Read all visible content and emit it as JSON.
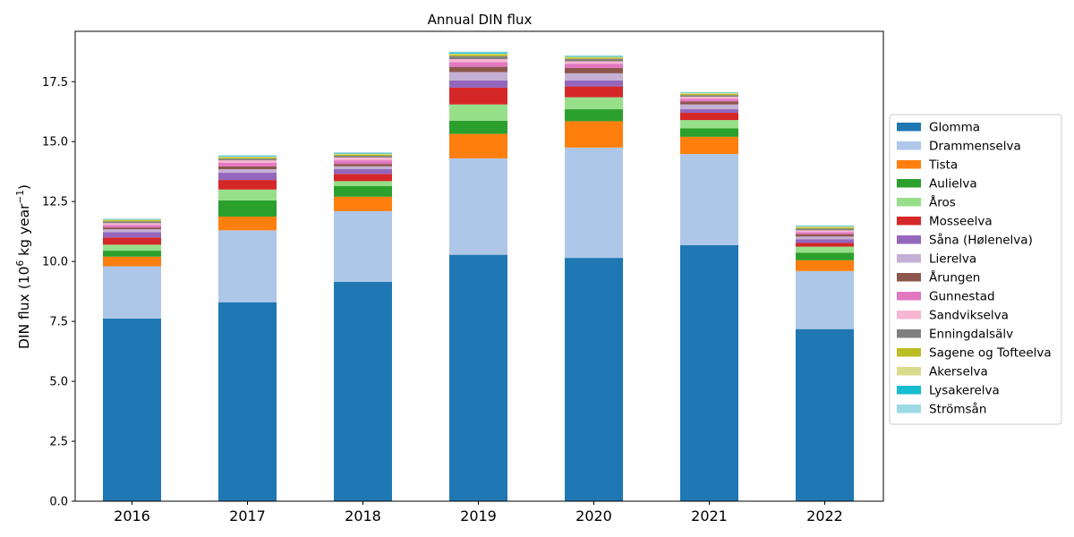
{
  "chart_data": {
    "type": "bar",
    "stacked": true,
    "title": "Annual DIN flux",
    "xlabel": "",
    "ylabel": "DIN flux (10",
    "ylabel_sup1": "6",
    "ylabel_mid": " kg year",
    "ylabel_sup2": "−1",
    "ylabel_end": ")",
    "ylim": [
      0,
      19.6
    ],
    "yticks": [
      0.0,
      2.5,
      5.0,
      7.5,
      10.0,
      12.5,
      15.0,
      17.5
    ],
    "ytick_labels": [
      "0.0",
      "2.5",
      "5.0",
      "7.5",
      "10.0",
      "12.5",
      "15.0",
      "17.5"
    ],
    "categories": [
      "2016",
      "2017",
      "2018",
      "2019",
      "2020",
      "2021",
      "2022"
    ],
    "legend_position": "center-right",
    "grid": false,
    "series": [
      {
        "name": "Glomma",
        "color": "#1f77b4",
        "values": [
          7.62,
          8.3,
          9.15,
          10.28,
          10.15,
          10.68,
          7.18
        ]
      },
      {
        "name": "Drammenselva",
        "color": "#aec7e8",
        "values": [
          2.18,
          3.0,
          2.95,
          4.02,
          4.6,
          3.8,
          2.42
        ]
      },
      {
        "name": "Tista",
        "color": "#ff7f0e",
        "values": [
          0.4,
          0.57,
          0.6,
          1.02,
          1.1,
          0.72,
          0.45
        ]
      },
      {
        "name": "Aulielva",
        "color": "#2ca02c",
        "values": [
          0.25,
          0.68,
          0.45,
          0.55,
          0.5,
          0.35,
          0.32
        ]
      },
      {
        "name": "Åros",
        "color": "#98df8a",
        "values": [
          0.25,
          0.45,
          0.2,
          0.68,
          0.5,
          0.35,
          0.25
        ]
      },
      {
        "name": "Mosseelva",
        "color": "#d62728",
        "values": [
          0.3,
          0.4,
          0.3,
          0.7,
          0.45,
          0.3,
          0.15
        ]
      },
      {
        "name": "Såna (Hølenelva)",
        "color": "#9467bd",
        "values": [
          0.22,
          0.3,
          0.2,
          0.3,
          0.25,
          0.15,
          0.15
        ]
      },
      {
        "name": "Lierelva",
        "color": "#c5b0d5",
        "values": [
          0.12,
          0.15,
          0.12,
          0.35,
          0.3,
          0.2,
          0.12
        ]
      },
      {
        "name": "Årungen",
        "color": "#8c564b",
        "values": [
          0.08,
          0.12,
          0.1,
          0.22,
          0.22,
          0.12,
          0.1
        ]
      },
      {
        "name": "Gunnestad",
        "color": "#e377c2",
        "values": [
          0.1,
          0.15,
          0.15,
          0.2,
          0.18,
          0.12,
          0.08
        ]
      },
      {
        "name": "Sandvikselva",
        "color": "#f7b6d2",
        "values": [
          0.08,
          0.1,
          0.12,
          0.12,
          0.1,
          0.08,
          0.08
        ]
      },
      {
        "name": "Enningdalsälv",
        "color": "#7f7f7f",
        "values": [
          0.07,
          0.07,
          0.07,
          0.12,
          0.1,
          0.07,
          0.07
        ]
      },
      {
        "name": "Sagene og Tofteelva",
        "color": "#bcbd22",
        "values": [
          0.05,
          0.05,
          0.05,
          0.07,
          0.05,
          0.05,
          0.05
        ]
      },
      {
        "name": "Akerselva",
        "color": "#dbdb8d",
        "values": [
          0.03,
          0.04,
          0.04,
          0.04,
          0.04,
          0.04,
          0.04
        ]
      },
      {
        "name": "Lysakerelva",
        "color": "#17becf",
        "values": [
          0.02,
          0.03,
          0.03,
          0.05,
          0.03,
          0.02,
          0.02
        ]
      },
      {
        "name": "Strömsån",
        "color": "#9edae5",
        "values": [
          0.02,
          0.02,
          0.03,
          0.03,
          0.02,
          0.02,
          0.02
        ]
      }
    ]
  }
}
